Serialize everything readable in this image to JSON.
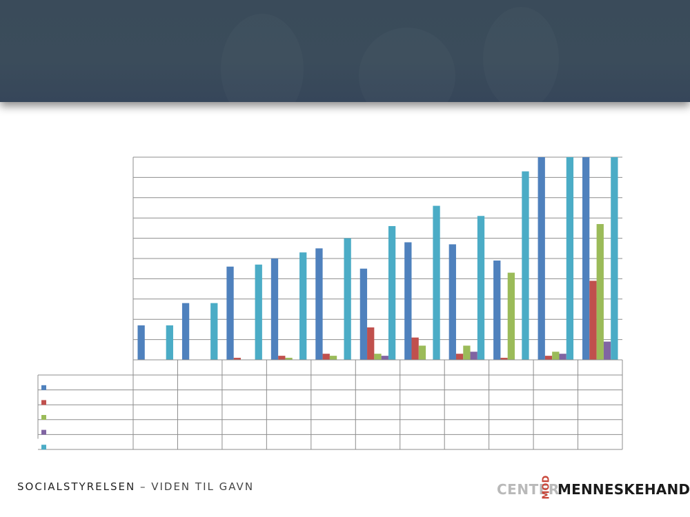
{
  "footer": {
    "brand": "SOCIALSTYRELSEN",
    "separator": " – ",
    "tagline": "VIDEN TIL GAVN"
  },
  "logo": {
    "left_word": "CENTER",
    "middle_word": "MOD",
    "right_word": "MENNESKEHANDEL",
    "colors": {
      "left": "#b9b9b9",
      "middle": "#c9473a",
      "right": "#1a1a1a"
    }
  },
  "chart_data": {
    "type": "bar",
    "title": "",
    "xlabel": "",
    "ylabel": "",
    "ylim": [
      0,
      10
    ],
    "grid": true,
    "legend": "table-below",
    "categories": [
      "",
      "",
      "",
      "",
      "",
      "",
      "",
      "",
      "",
      "",
      ""
    ],
    "series": [
      {
        "color": "#4f81bd",
        "values": [
          1.7,
          2.8,
          4.6,
          5.0,
          5.5,
          4.5,
          5.8,
          5.7,
          4.9,
          10.0,
          10.0
        ]
      },
      {
        "color": "#c0504d",
        "values": [
          0,
          0,
          0.1,
          0.2,
          0.3,
          1.6,
          1.1,
          0.3,
          0.1,
          0.2,
          3.9
        ]
      },
      {
        "color": "#9bbb59",
        "values": [
          0,
          0,
          0,
          0.1,
          0.2,
          0.3,
          0.7,
          0.7,
          4.3,
          0.4,
          6.7
        ]
      },
      {
        "color": "#8064a2",
        "values": [
          0,
          0,
          0,
          0,
          0,
          0.2,
          0,
          0.4,
          0,
          0.3,
          0.9
        ]
      },
      {
        "color": "#4bacc6",
        "values": [
          1.7,
          2.8,
          4.7,
          5.3,
          6.0,
          6.6,
          7.6,
          7.1,
          9.3,
          10.0,
          10.0
        ]
      }
    ]
  }
}
